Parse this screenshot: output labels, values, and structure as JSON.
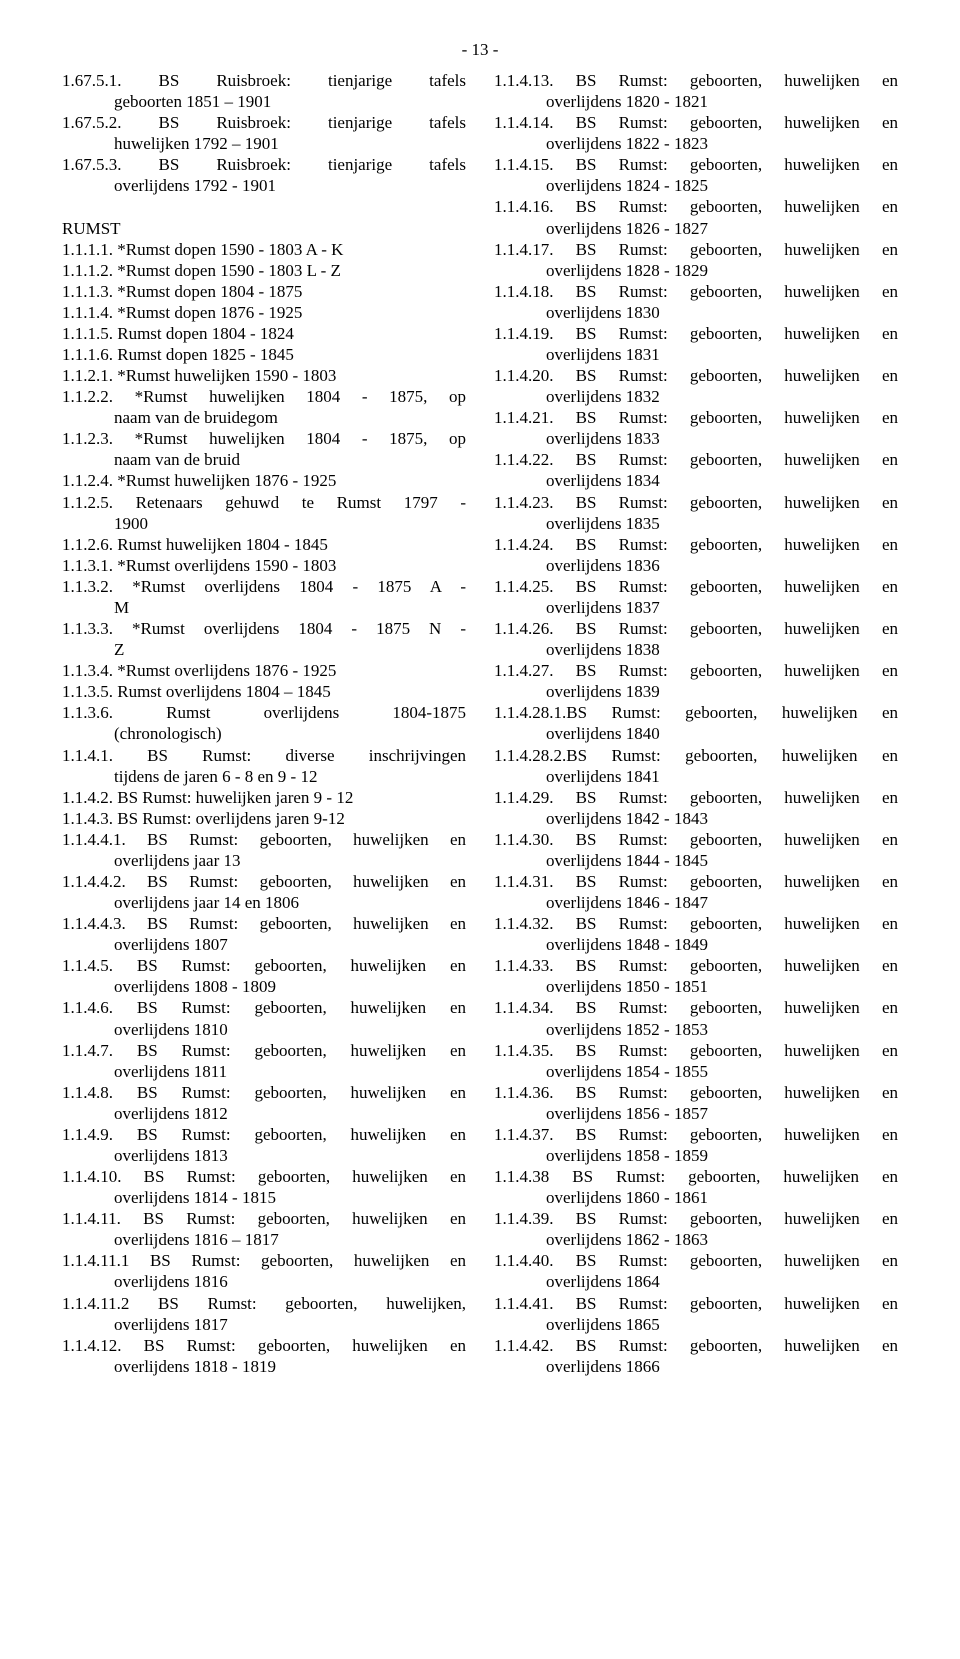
{
  "pageNumber": "- 13 -",
  "leftColumn": [
    {
      "type": "entry",
      "just": true,
      "lines": [
        "1.67.5.1. BS Ruisbroek: tienjarige tafels",
        "geboorten 1851 – 1901"
      ]
    },
    {
      "type": "entry",
      "just": true,
      "lines": [
        "1.67.5.2. BS Ruisbroek: tienjarige tafels",
        "huwelijken 1792 – 1901"
      ]
    },
    {
      "type": "entry",
      "just": true,
      "lines": [
        "1.67.5.3. BS Ruisbroek: tienjarige tafels",
        "overlijdens 1792 - 1901"
      ]
    },
    {
      "type": "blank"
    },
    {
      "type": "section",
      "text": "RUMST"
    },
    {
      "type": "entry",
      "lines": [
        "1.1.1.1.  *Rumst dopen 1590 - 1803  A - K"
      ]
    },
    {
      "type": "entry",
      "lines": [
        "1.1.1.2.  *Rumst dopen 1590 - 1803  L - Z"
      ]
    },
    {
      "type": "entry",
      "lines": [
        "1.1.1.3.  *Rumst dopen 1804 - 1875"
      ]
    },
    {
      "type": "entry",
      "lines": [
        "1.1.1.4.  *Rumst dopen 1876 - 1925"
      ]
    },
    {
      "type": "entry",
      "lines": [
        "1.1.1.5.  Rumst dopen 1804 - 1824"
      ]
    },
    {
      "type": "entry",
      "lines": [
        "1.1.1.6.  Rumst dopen 1825 - 1845"
      ]
    },
    {
      "type": "entry",
      "lines": [
        "1.1.2.1.  *Rumst huwelijken 1590 - 1803"
      ]
    },
    {
      "type": "entry",
      "just": true,
      "lines": [
        "1.1.2.2. *Rumst huwelijken 1804 - 1875, op",
        "naam van de bruidegom"
      ]
    },
    {
      "type": "entry",
      "just": true,
      "lines": [
        "1.1.2.3. *Rumst huwelijken 1804 - 1875, op",
        "naam van de bruid"
      ]
    },
    {
      "type": "entry",
      "lines": [
        "1.1.2.4.  *Rumst huwelijken 1876 - 1925"
      ]
    },
    {
      "type": "entry",
      "just": true,
      "lines": [
        "1.1.2.5. Retenaars gehuwd te Rumst 1797 -",
        "1900"
      ]
    },
    {
      "type": "entry",
      "lines": [
        "1.1.2.6.  Rumst huwelijken 1804 - 1845"
      ]
    },
    {
      "type": "entry",
      "lines": [
        "1.1.3.1.  *Rumst overlijdens 1590 - 1803"
      ]
    },
    {
      "type": "entry",
      "just": true,
      "lines": [
        "1.1.3.2. *Rumst overlijdens 1804 - 1875  A -",
        "M"
      ]
    },
    {
      "type": "entry",
      "just": true,
      "lines": [
        "1.1.3.3. *Rumst overlijdens 1804 - 1875  N -",
        "Z"
      ]
    },
    {
      "type": "entry",
      "lines": [
        "1.1.3.4.  *Rumst overlijdens 1876 - 1925"
      ]
    },
    {
      "type": "entry",
      "lines": [
        "1.1.3.5.  Rumst overlijdens 1804 – 1845"
      ]
    },
    {
      "type": "entry",
      "just": true,
      "lines": [
        "1.1.3.6.      Rumst overlijdens 1804-1875",
        "(chronologisch)"
      ]
    },
    {
      "type": "entry",
      "just": true,
      "lines": [
        "1.1.4.1. BS Rumst: diverse inschrijvingen",
        "tijdens de jaren 6 - 8 en 9 - 12"
      ]
    },
    {
      "type": "entry",
      "lines": [
        "1.1.4.2.  BS Rumst: huwelijken jaren 9 - 12"
      ]
    },
    {
      "type": "entry",
      "lines": [
        "1.1.4.3.  BS Rumst: overlijdens jaren 9-12"
      ]
    },
    {
      "type": "entry",
      "just": true,
      "lines": [
        "1.1.4.4.1. BS Rumst: geboorten, huwelijken en",
        "overlijdens jaar 13"
      ]
    },
    {
      "type": "entry",
      "just": true,
      "lines": [
        "1.1.4.4.2. BS Rumst: geboorten, huwelijken en",
        "overlijdens jaar 14 en 1806"
      ]
    },
    {
      "type": "entry",
      "just": true,
      "lines": [
        "1.1.4.4.3. BS Rumst: geboorten, huwelijken en",
        "overlijdens 1807"
      ]
    },
    {
      "type": "entry",
      "just": true,
      "lines": [
        "1.1.4.5. BS Rumst: geboorten, huwelijken en",
        "overlijdens 1808 - 1809"
      ]
    },
    {
      "type": "entry",
      "just": true,
      "lines": [
        "1.1.4.6. BS Rumst: geboorten, huwelijken en",
        "overlijdens 1810"
      ]
    },
    {
      "type": "entry",
      "just": true,
      "lines": [
        "1.1.4.7. BS Rumst: geboorten, huwelijken en",
        "overlijdens 1811"
      ]
    },
    {
      "type": "entry",
      "just": true,
      "lines": [
        "1.1.4.8. BS Rumst: geboorten, huwelijken en",
        "overlijdens 1812"
      ]
    },
    {
      "type": "entry",
      "just": true,
      "lines": [
        "1.1.4.9. BS Rumst: geboorten, huwelijken en",
        "overlijdens 1813"
      ]
    },
    {
      "type": "entry",
      "just": true,
      "lines": [
        "1.1.4.10. BS Rumst: geboorten, huwelijken en",
        "overlijdens 1814 - 1815"
      ]
    },
    {
      "type": "entry",
      "just": true,
      "lines": [
        "1.1.4.11. BS Rumst: geboorten, huwelijken en",
        "overlijdens 1816 – 1817"
      ]
    },
    {
      "type": "entry",
      "just": true,
      "lines": [
        "1.1.4.11.1 BS Rumst: geboorten, huwelijken en",
        "overlijdens 1816"
      ]
    },
    {
      "type": "entry",
      "just": true,
      "lines": [
        "1.1.4.11.2 BS Rumst: geboorten, huwelijken,",
        "overlijdens 1817"
      ]
    },
    {
      "type": "entry",
      "just": true,
      "lines": [
        "1.1.4.12. BS Rumst: geboorten, huwelijken en",
        "overlijdens 1818 - 1819"
      ]
    }
  ],
  "rightColumn": [
    {
      "type": "entry",
      "just": true,
      "lines": [
        "1.1.4.13. BS Rumst: geboorten, huwelijken en",
        "overlijdens 1820 - 1821"
      ]
    },
    {
      "type": "entry",
      "just": true,
      "lines": [
        "1.1.4.14. BS Rumst: geboorten, huwelijken en",
        "overlijdens 1822 - 1823"
      ]
    },
    {
      "type": "entry",
      "just": true,
      "lines": [
        "1.1.4.15. BS Rumst: geboorten, huwelijken en",
        "overlijdens 1824 - 1825"
      ]
    },
    {
      "type": "entry",
      "just": true,
      "lines": [
        "1.1.4.16. BS Rumst: geboorten, huwelijken en",
        "overlijdens 1826 - 1827"
      ]
    },
    {
      "type": "entry",
      "just": true,
      "lines": [
        "1.1.4.17. BS Rumst: geboorten, huwelijken en",
        "overlijdens 1828 - 1829"
      ]
    },
    {
      "type": "entry",
      "just": true,
      "lines": [
        "1.1.4.18. BS Rumst: geboorten, huwelijken en",
        "overlijdens 1830"
      ]
    },
    {
      "type": "entry",
      "just": true,
      "lines": [
        "1.1.4.19. BS Rumst: geboorten, huwelijken en",
        "overlijdens 1831"
      ]
    },
    {
      "type": "entry",
      "just": true,
      "lines": [
        "1.1.4.20. BS Rumst: geboorten, huwelijken en",
        "overlijdens 1832"
      ]
    },
    {
      "type": "entry",
      "just": true,
      "lines": [
        "1.1.4.21. BS Rumst: geboorten, huwelijken en",
        "overlijdens 1833"
      ]
    },
    {
      "type": "entry",
      "just": true,
      "lines": [
        "1.1.4.22. BS Rumst: geboorten, huwelijken en",
        "overlijdens 1834"
      ]
    },
    {
      "type": "entry",
      "just": true,
      "lines": [
        "1.1.4.23. BS Rumst: geboorten, huwelijken en",
        "overlijdens 1835"
      ]
    },
    {
      "type": "entry",
      "just": true,
      "lines": [
        "1.1.4.24. BS Rumst: geboorten, huwelijken en",
        "overlijdens 1836"
      ]
    },
    {
      "type": "entry",
      "just": true,
      "lines": [
        "1.1.4.25. BS Rumst: geboorten, huwelijken en",
        "overlijdens 1837"
      ]
    },
    {
      "type": "entry",
      "just": true,
      "lines": [
        "1.1.4.26. BS Rumst: geboorten, huwelijken en",
        "overlijdens 1838"
      ]
    },
    {
      "type": "entry",
      "just": true,
      "lines": [
        "1.1.4.27. BS Rumst: geboorten, huwelijken en",
        "overlijdens 1839"
      ]
    },
    {
      "type": "entry",
      "just": true,
      "lines": [
        "1.1.4.28.1.BS Rumst: geboorten, huwelijken en",
        "overlijdens 1840"
      ]
    },
    {
      "type": "entry",
      "just": true,
      "lines": [
        "1.1.4.28.2.BS Rumst: geboorten, huwelijken en",
        "overlijdens 1841"
      ]
    },
    {
      "type": "entry",
      "just": true,
      "lines": [
        "1.1.4.29. BS Rumst: geboorten, huwelijken en",
        "overlijdens 1842 - 1843"
      ]
    },
    {
      "type": "entry",
      "just": true,
      "lines": [
        "1.1.4.30. BS Rumst: geboorten, huwelijken en",
        "overlijdens 1844 - 1845"
      ]
    },
    {
      "type": "entry",
      "just": true,
      "lines": [
        "1.1.4.31. BS Rumst: geboorten, huwelijken en",
        "overlijdens 1846 - 1847"
      ]
    },
    {
      "type": "entry",
      "just": true,
      "lines": [
        "1.1.4.32. BS Rumst: geboorten, huwelijken en",
        "overlijdens 1848 - 1849"
      ]
    },
    {
      "type": "entry",
      "just": true,
      "lines": [
        "1.1.4.33. BS Rumst: geboorten, huwelijken en",
        "overlijdens 1850 - 1851"
      ]
    },
    {
      "type": "entry",
      "just": true,
      "lines": [
        "1.1.4.34. BS Rumst: geboorten, huwelijken en",
        "overlijdens 1852 - 1853"
      ]
    },
    {
      "type": "entry",
      "just": true,
      "lines": [
        "1.1.4.35. BS Rumst: geboorten, huwelijken en",
        "overlijdens 1854 - 1855"
      ]
    },
    {
      "type": "entry",
      "just": true,
      "lines": [
        "1.1.4.36. BS Rumst: geboorten, huwelijken en",
        "overlijdens 1856 - 1857"
      ]
    },
    {
      "type": "entry",
      "just": true,
      "lines": [
        "1.1.4.37. BS Rumst: geboorten, huwelijken en",
        "overlijdens 1858 - 1859"
      ]
    },
    {
      "type": "entry",
      "just": true,
      "lines": [
        "1.1.4.38  BS Rumst: geboorten, huwelijken en",
        "overlijdens 1860 - 1861"
      ]
    },
    {
      "type": "entry",
      "just": true,
      "lines": [
        "1.1.4.39. BS Rumst: geboorten, huwelijken en",
        "overlijdens 1862 - 1863"
      ]
    },
    {
      "type": "entry",
      "just": true,
      "lines": [
        "1.1.4.40. BS Rumst: geboorten, huwelijken en",
        "overlijdens 1864"
      ]
    },
    {
      "type": "entry",
      "just": true,
      "lines": [
        "1.1.4.41. BS Rumst: geboorten, huwelijken en",
        "overlijdens 1865"
      ]
    },
    {
      "type": "entry",
      "just": true,
      "lines": [
        "1.1.4.42. BS Rumst: geboorten, huwelijken en",
        "overlijdens 1866"
      ]
    }
  ]
}
